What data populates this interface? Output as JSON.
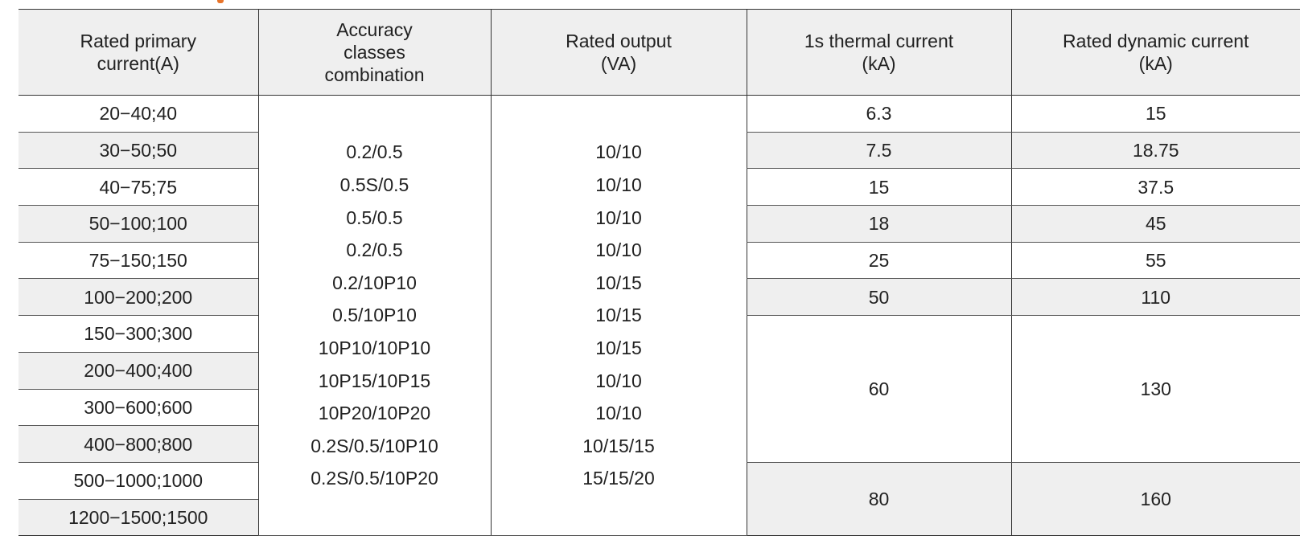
{
  "table": {
    "headers": {
      "rated_primary_current": "Rated primary current(A)",
      "accuracy_classes": "Accuracy classes combination",
      "rated_output": "Rated output (VA)",
      "thermal_current": "1s thermal current (kA)",
      "dynamic_current": "Rated dynamic current (kA)"
    },
    "primary_currents": [
      "20−40;40",
      "30−50;50",
      "40−75;75",
      "50−100;100",
      "75−150;150",
      "100−200;200",
      "150−300;300",
      "200−400;400",
      "300−600;600",
      "400−800;800",
      "500−1000;1000",
      "1200−1500;1500"
    ],
    "accuracy_classes": [
      "0.2/0.5",
      "0.5S/0.5",
      "0.5/0.5",
      "0.2/0.5",
      "0.2/10P10",
      "0.5/10P10",
      "10P10/10P10",
      "10P15/10P15",
      "10P20/10P20",
      "0.2S/0.5/10P10",
      "0.2S/0.5/10P20"
    ],
    "rated_outputs": [
      "10/10",
      "10/10",
      "10/10",
      "10/10",
      "10/15",
      "10/15",
      "10/15",
      "10/10",
      "10/10",
      "10/15/15",
      "15/15/20"
    ],
    "thermal_currents": [
      "6.3",
      "7.5",
      "15",
      "18",
      "25",
      "50",
      "60",
      "80"
    ],
    "dynamic_currents": [
      "15",
      "18.75",
      "37.5",
      "45",
      "55",
      "110",
      "130",
      "160"
    ]
  }
}
